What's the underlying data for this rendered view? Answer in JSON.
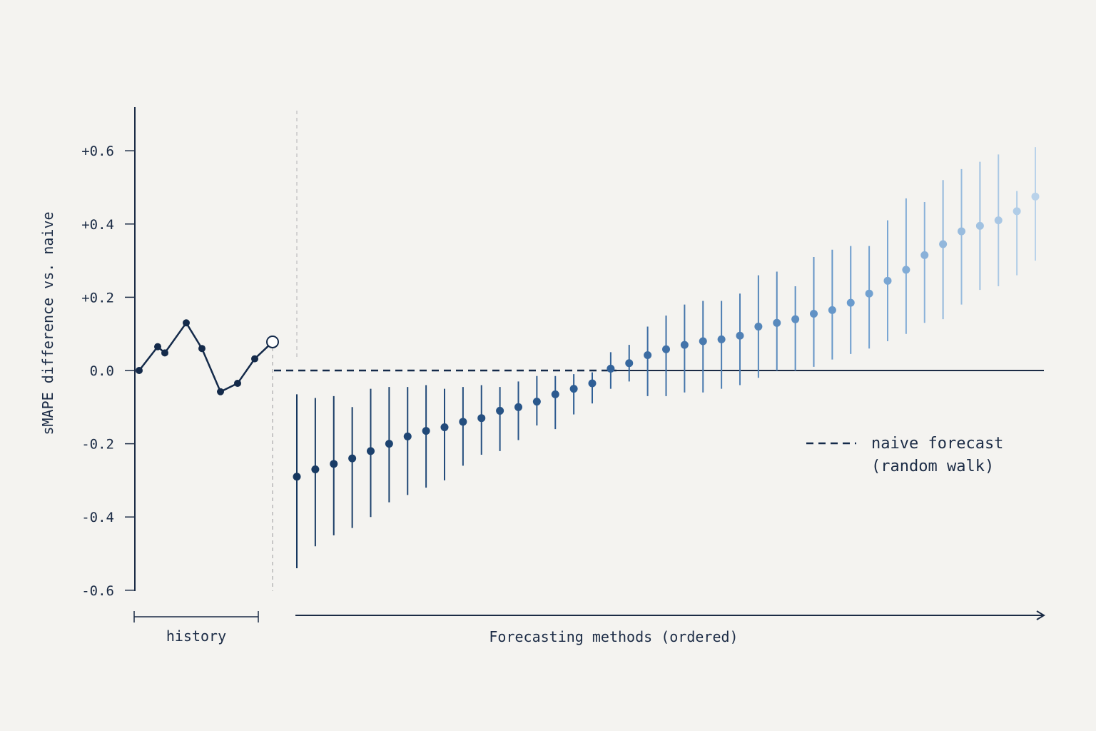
{
  "chart_data": {
    "type": "scatter",
    "ylabel": "sMAPE difference vs. naive",
    "xlabel": "Forecasting methods (ordered)",
    "history_label": "history",
    "ylim": [
      -0.6,
      0.6
    ],
    "yticks": [
      0.6,
      0.4,
      0.2,
      0.0,
      -0.2,
      -0.4,
      -0.6
    ],
    "ytick_labels": [
      "+0.6",
      "+0.4",
      "+0.2",
      "0.0",
      "-0.2",
      "-0.4",
      "-0.6"
    ],
    "grid": false,
    "legend": {
      "placement": "right",
      "entries": [
        {
          "style": "dashed",
          "lines": [
            "naive forecast",
            "(random walk)"
          ]
        }
      ]
    },
    "history": {
      "values": [
        0.0,
        0.065,
        0.048,
        0.13,
        0.06,
        -0.058,
        -0.035,
        0.032,
        0.078
      ]
    },
    "methods": {
      "estimates": [
        -0.29,
        -0.27,
        -0.255,
        -0.24,
        -0.22,
        -0.2,
        -0.18,
        -0.165,
        -0.155,
        -0.14,
        -0.13,
        -0.11,
        -0.1,
        -0.085,
        -0.065,
        -0.05,
        -0.035,
        0.005,
        0.02,
        0.042,
        0.058,
        0.07,
        0.08,
        0.085,
        0.095,
        0.12,
        0.13,
        0.14,
        0.155,
        0.165,
        0.185,
        0.21,
        0.245,
        0.275,
        0.315,
        0.345,
        0.38,
        0.395,
        0.41,
        0.435,
        0.475
      ],
      "lower": [
        -0.54,
        -0.48,
        -0.45,
        -0.43,
        -0.4,
        -0.36,
        -0.34,
        -0.32,
        -0.3,
        -0.26,
        -0.23,
        -0.22,
        -0.19,
        -0.15,
        -0.16,
        -0.12,
        -0.09,
        -0.05,
        -0.03,
        -0.07,
        -0.07,
        -0.06,
        -0.06,
        -0.05,
        -0.04,
        -0.02,
        0.0,
        0.0,
        0.01,
        0.03,
        0.045,
        0.06,
        0.08,
        0.1,
        0.13,
        0.14,
        0.18,
        0.22,
        0.23,
        0.26,
        0.3
      ],
      "upper": [
        -0.065,
        -0.075,
        -0.07,
        -0.1,
        -0.05,
        -0.045,
        -0.045,
        -0.04,
        -0.05,
        -0.045,
        -0.04,
        -0.045,
        -0.03,
        -0.015,
        -0.015,
        -0.01,
        -0.005,
        0.05,
        0.07,
        0.12,
        0.15,
        0.18,
        0.19,
        0.19,
        0.21,
        0.26,
        0.27,
        0.23,
        0.31,
        0.33,
        0.34,
        0.34,
        0.41,
        0.47,
        0.46,
        0.52,
        0.55,
        0.57,
        0.59,
        0.49,
        0.61
      ]
    },
    "colors": {
      "dark": "#142a4a",
      "mid": "#2f5f96",
      "light": "#b9d2ea",
      "axis": "#1b2b45",
      "background": "#f4f3f0"
    }
  }
}
